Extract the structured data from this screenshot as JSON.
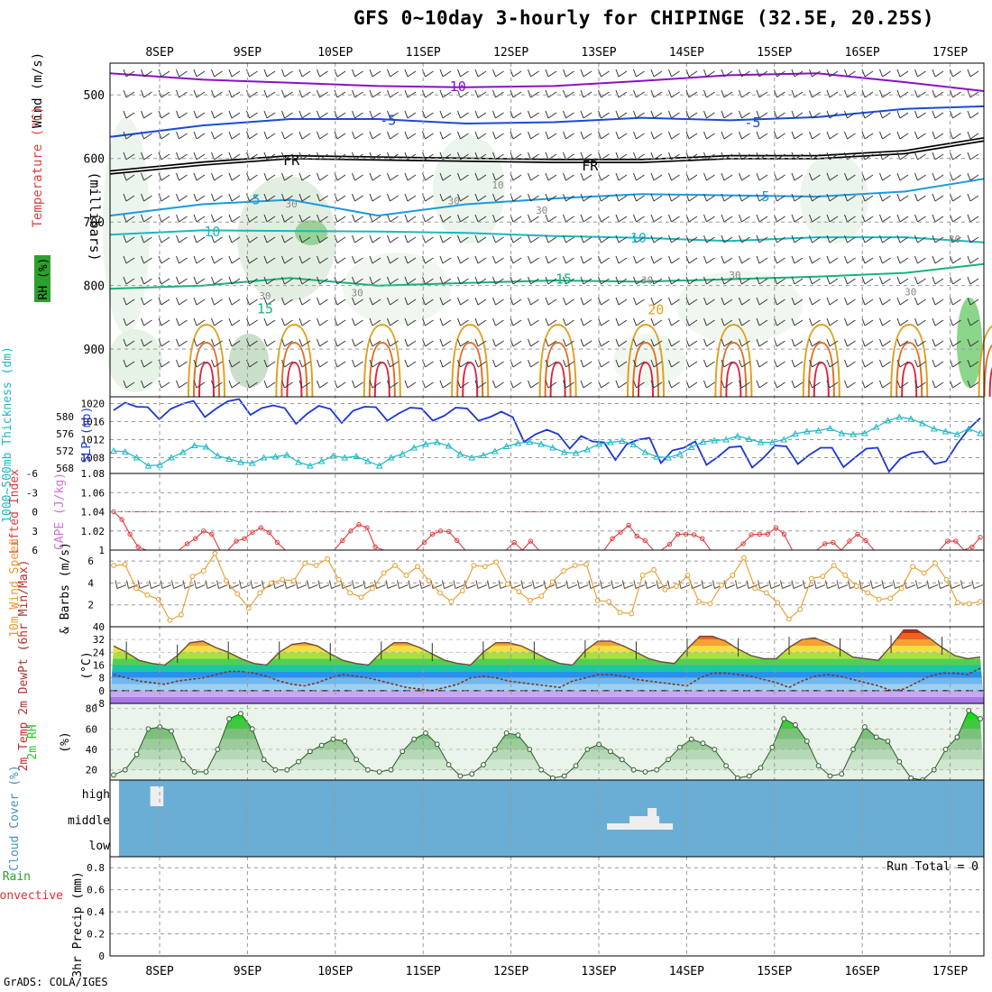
{
  "title": "GFS 0~10day 3-hourly for CHIPINGE (32.5E, 20.25S)",
  "credit": "GrADS: COLA/IGES",
  "date_labels": [
    "8SEP",
    "9SEP",
    "10SEP",
    "11SEP",
    "12SEP",
    "13SEP",
    "14SEP",
    "15SEP",
    "16SEP",
    "17SEP"
  ],
  "colors": {
    "slp": "#1a36d6",
    "thickness": "#18b8c8",
    "lifted": "#e03a3a",
    "cape": "#d070d8",
    "wind10m": "#e89a28",
    "barb": "#5a4a3a",
    "rh": "#22cc22",
    "cloud": "#6aaed6",
    "temp_minus10": "#8a10c8",
    "temp_minus5": "#1a4ad6",
    "temp_plus5": "#1a9ae0",
    "temp_10": "#18b8c0",
    "temp_15": "#18b080",
    "temp_20": "#e0a020",
    "temp_25": "#e07020",
    "temp_30": "#e02040",
    "freezing": "#000000"
  },
  "chart_data": [
    {
      "panel": "upper-air",
      "type": "contour",
      "ylabel": "(millibars)",
      "side_labels": [
        "Wind (m/s)",
        "Temperature (°C)",
        "RH (%)"
      ],
      "yticks": [
        500,
        600,
        700,
        800,
        900
      ],
      "ylim": [
        450,
        975
      ],
      "contour_labels": [
        {
          "text": "-10",
          "day": 3.35,
          "p": 487
        },
        {
          "text": "-5",
          "day": 2.6,
          "p": 540
        },
        {
          "text": "-5",
          "day": 6.75,
          "p": 544
        },
        {
          "text": "FR",
          "day": 1.5,
          "p": 603
        },
        {
          "text": "FR",
          "day": 4.9,
          "p": 612
        },
        {
          "text": "5",
          "day": 1.1,
          "p": 665
        },
        {
          "text": "5",
          "day": 6.9,
          "p": 660
        },
        {
          "text": "10",
          "day": 0.6,
          "p": 715
        },
        {
          "text": "10",
          "day": 5.45,
          "p": 725
        },
        {
          "text": "15",
          "day": 4.6,
          "p": 790
        },
        {
          "text": "15",
          "day": 1.2,
          "p": 837
        },
        {
          "text": "20",
          "day": 5.65,
          "p": 838
        },
        {
          "text": "30",
          "day": 1.5,
          "p": 670
        },
        {
          "text": "30",
          "day": 1.2,
          "p": 815
        },
        {
          "text": "30",
          "day": 2.25,
          "p": 810
        },
        {
          "text": "30",
          "day": 3.35,
          "p": 665
        },
        {
          "text": "10",
          "day": 3.85,
          "p": 640
        },
        {
          "text": "30",
          "day": 4.35,
          "p": 680
        },
        {
          "text": "30",
          "day": 5.55,
          "p": 790
        },
        {
          "text": "30",
          "day": 6.55,
          "p": 782
        },
        {
          "text": "30",
          "day": 8.55,
          "p": 808
        },
        {
          "text": "30",
          "day": 9.05,
          "p": 725
        }
      ],
      "isotherms": [
        {
          "label": "-10",
          "color_key": "temp_minus10",
          "days": [
            0,
            1,
            2,
            3,
            4,
            5,
            6,
            7,
            8,
            9,
            9.6
          ],
          "p": [
            466,
            476,
            481,
            486,
            488,
            486,
            478,
            469,
            466,
            480,
            494
          ]
        },
        {
          "label": "-5",
          "color_key": "temp_minus5",
          "days": [
            0,
            1,
            2,
            3,
            4,
            5,
            6,
            7,
            8,
            9,
            9.6
          ],
          "p": [
            566,
            548,
            538,
            538,
            545,
            543,
            536,
            540,
            535,
            522,
            518
          ]
        },
        {
          "label": "FR",
          "color_key": "freezing",
          "days": [
            0,
            1,
            2,
            3,
            4,
            5,
            6,
            7,
            8,
            9,
            9.6
          ],
          "p": [
            622,
            608,
            598,
            600,
            602,
            604,
            604,
            598,
            598,
            590,
            570
          ]
        },
        {
          "label": "5",
          "color_key": "temp_plus5",
          "days": [
            0,
            1,
            2,
            3,
            4,
            5,
            6,
            7,
            8,
            9,
            9.6
          ],
          "p": [
            690,
            672,
            665,
            690,
            672,
            663,
            656,
            658,
            660,
            652,
            632
          ]
        },
        {
          "label": "10",
          "color_key": "temp_10",
          "days": [
            0,
            1,
            2,
            3,
            4,
            5,
            6,
            7,
            8,
            9,
            9.6
          ],
          "p": [
            720,
            713,
            714,
            715,
            717,
            722,
            725,
            730,
            724,
            724,
            732
          ]
        },
        {
          "label": "15",
          "color_key": "temp_15",
          "days": [
            0,
            1,
            2,
            3,
            4,
            5,
            6,
            7,
            8,
            9,
            9.6
          ],
          "p": [
            805,
            800,
            788,
            800,
            796,
            792,
            794,
            790,
            786,
            780,
            766
          ]
        }
      ]
    },
    {
      "panel": "slp-thickness",
      "type": "line",
      "ylabel_left": "1000~500mb Thickness (dm)",
      "ylabel_right": "SLP (mb)",
      "yticks_left": [
        568,
        572,
        576,
        580
      ],
      "yticks_right": [
        1008,
        1012,
        1016,
        1020
      ],
      "ylim_slp": [
        1004.5,
        1021.5
      ],
      "series": [
        {
          "name": "SLP",
          "color_key": "slp",
          "axis": "slp",
          "values": [
            1018.5,
            1020.2,
            1019.3,
            1019.2,
            1016.5,
            1018.8,
            1019.9,
            1020.6,
            1017,
            1018.9,
            1020.5,
            1021,
            1017.5,
            1019,
            1019.6,
            1019,
            1015.5,
            1017.8,
            1019.5,
            1018.8,
            1015.7,
            1018.4,
            1019.3,
            1019.2,
            1016.2,
            1017.8,
            1019.1,
            1018.9,
            1016.2,
            1017.3,
            1019.1,
            1018.9,
            1016.2,
            1017,
            1018.2,
            1017,
            1011.5,
            1013.2,
            1014.2,
            1013.2,
            1010,
            1012.8,
            1011.6,
            1011.4,
            1007.5,
            1011,
            1012,
            1012.4,
            1006.8,
            1009.6,
            1010.2,
            1011.6,
            1006.4,
            1008.2,
            1010.3,
            1010.5,
            1005.8,
            1008,
            1010.7,
            1010.5,
            1006.6,
            1008.6,
            1010.2,
            1010.2,
            1005.9,
            1008,
            1010,
            1010.2,
            1004.9,
            1007.8,
            1009,
            1009.4,
            1006.6,
            1007.2,
            1011.1,
            1014.4,
            1016.8
          ]
        },
        {
          "name": "Thickness",
          "color_key": "thickness",
          "axis": "slp",
          "values": [
            1009.5,
            1009.3,
            1008,
            1006.2,
            1006.4,
            1008,
            1009.2,
            1010.7,
            1010.4,
            1008.4,
            1007.7,
            1007,
            1006.8,
            1008,
            1008.2,
            1008.6,
            1007,
            1006.2,
            1007.2,
            1008.4,
            1008,
            1008.3,
            1007.2,
            1006.2,
            1008,
            1008.8,
            1010.2,
            1011,
            1011.4,
            1010.6,
            1008.8,
            1008,
            1008.5,
            1009.4,
            1010.5,
            1011.2,
            1011.5,
            1011,
            1010.2,
            1009.2,
            1009,
            1009.8,
            1011,
            1011.4,
            1011.7,
            1010.9,
            1009.2,
            1008.2,
            1008,
            1008.8,
            1010.3,
            1011.5,
            1011.8,
            1012,
            1012.8,
            1012.1,
            1011.4,
            1011.4,
            1012,
            1013.3,
            1013.8,
            1014,
            1014.5,
            1013.4,
            1013.2,
            1013.4,
            1014.8,
            1016.2,
            1017,
            1016.6,
            1015.6,
            1014.4,
            1013.8,
            1013.2,
            1014.4,
            1013.4
          ]
        }
      ]
    },
    {
      "panel": "lifted-cape",
      "type": "line",
      "ylabel_left": "Lifted Index",
      "ylabel_right": "CAPE (J/kg)",
      "yticks_left": [
        -6,
        -3,
        0,
        3,
        6
      ],
      "yticks_right": [
        1,
        1.02,
        1.04,
        1.06,
        1.08
      ],
      "ylim": [
        -6,
        6
      ],
      "reference_line": 0,
      "series": [
        {
          "name": "Lifted Index",
          "color_key": "lifted",
          "values": [
            0,
            1.2,
            3.5,
            5.5,
            6,
            6,
            6,
            6,
            6,
            5,
            4.2,
            3,
            3.5,
            6,
            6,
            4.6,
            4.2,
            3.2,
            2.5,
            3.2,
            4.8,
            6,
            6,
            6,
            6,
            6,
            6,
            6,
            4.5,
            3,
            2,
            2.5,
            5.5,
            6,
            6,
            6,
            6,
            6,
            4.8,
            3.5,
            3,
            3.1,
            4.5,
            6,
            6,
            6,
            6,
            6,
            6,
            4.8,
            6,
            4.6,
            6,
            6,
            6,
            6,
            6,
            6,
            6,
            6,
            6,
            4.2,
            3.2,
            2.1,
            3.8,
            4.5,
            6,
            6,
            5.1,
            3.5,
            3.5,
            3.6,
            4.2,
            6,
            6,
            6,
            6,
            5,
            3.6,
            3.5,
            3.5,
            2.5,
            3.5,
            6,
            6,
            6,
            6,
            5,
            4.8,
            6,
            4.6,
            3.5,
            4.5,
            6,
            6,
            6,
            6,
            6,
            6,
            6,
            6,
            6,
            4.6,
            4.6,
            6,
            5.5,
            4
          ]
        }
      ]
    },
    {
      "panel": "wind10m",
      "type": "line",
      "ylabel_left": "10m Wind Speed",
      "ylabel_right": "& Barbs (m/s)",
      "yticks": [
        2,
        4,
        6
      ],
      "ylim": [
        0,
        7
      ],
      "series": [
        {
          "name": "10m Wind Speed",
          "color_key": "wind10m",
          "values": [
            5.6,
            5.7,
            3.5,
            2.9,
            2.5,
            0.6,
            1.1,
            4.6,
            5.1,
            6.7,
            4.2,
            3,
            1.7,
            3.1,
            4,
            4.3,
            4.2,
            5.8,
            5.6,
            6.2,
            4.3,
            3.1,
            2.7,
            3.5,
            4.9,
            5.6,
            4.7,
            5.5,
            4.2,
            3.1,
            2.3,
            3.3,
            5.6,
            5.5,
            5.9,
            3.9,
            3.2,
            2.4,
            2.8,
            4.1,
            5.1,
            5.6,
            5.7,
            2.4,
            2.3,
            1.3,
            1.2,
            4.7,
            5.2,
            3.4,
            3.7,
            4.7,
            2.3,
            2.1,
            3.8,
            4.7,
            6.3,
            3.5,
            3.1,
            2.2,
            0.7,
            1.6,
            4.4,
            4.6,
            5.6,
            4.7,
            3.7,
            3.1,
            2.5,
            2.6,
            3.5,
            5.5,
            4.9,
            5.8,
            4.3,
            2.2,
            2.1,
            2.3
          ]
        }
      ]
    },
    {
      "panel": "temperature",
      "type": "area",
      "ylabel_left": "2m Temp 2m DewPt (6hr Min/Max)",
      "ylabel_right": "(°C)",
      "yticks": [
        -8,
        0,
        8,
        16,
        24,
        32,
        40
      ],
      "ylim": [
        -8,
        40
      ],
      "series": [
        {
          "name": "2m Temp",
          "color_key": "temp_25",
          "values": [
            28,
            24,
            19,
            17,
            16,
            22,
            30,
            31,
            27,
            24,
            20,
            17,
            16,
            24,
            29,
            30,
            28,
            23,
            19,
            17,
            16,
            24,
            30,
            30,
            27,
            23,
            19,
            17,
            16,
            24,
            30,
            30,
            28,
            24,
            20,
            17,
            16,
            25,
            31,
            31,
            28,
            24,
            20,
            18,
            17,
            26,
            34,
            34,
            31,
            26,
            22,
            20,
            20,
            27,
            32,
            33,
            30,
            26,
            21,
            20,
            19,
            28,
            38,
            38,
            33,
            27,
            22,
            20,
            21
          ]
        },
        {
          "name": "2m DewPt",
          "color_key": "barb",
          "values": [
            10,
            8,
            6,
            5,
            4,
            6,
            7,
            8,
            10,
            12,
            12,
            11,
            9,
            6,
            4,
            3,
            5,
            8,
            10,
            9,
            8,
            6,
            4,
            2,
            1,
            0,
            2,
            4,
            8,
            9,
            8,
            6,
            5,
            4,
            3,
            2,
            6,
            8,
            10,
            10,
            9,
            7,
            6,
            5,
            4,
            3,
            8,
            11,
            11,
            10,
            9,
            7,
            5,
            2,
            6,
            9,
            10,
            9,
            7,
            5,
            3,
            0,
            1,
            5,
            9,
            11,
            11,
            10,
            14
          ]
        }
      ]
    },
    {
      "panel": "rh2m",
      "type": "area",
      "ylabel_left": "2m RH",
      "ylabel_right": "(%)",
      "yticks": [
        20,
        40,
        60,
        80
      ],
      "ylim": [
        10,
        85
      ],
      "series": [
        {
          "name": "2m RH",
          "color_key": "rh",
          "values": [
            15,
            20,
            35,
            60,
            62,
            58,
            30,
            18,
            18,
            40,
            70,
            75,
            60,
            30,
            20,
            20,
            28,
            38,
            44,
            50,
            48,
            30,
            20,
            18,
            20,
            38,
            50,
            56,
            45,
            25,
            14,
            16,
            25,
            40,
            56,
            54,
            40,
            20,
            12,
            14,
            24,
            40,
            45,
            38,
            30,
            20,
            18,
            20,
            30,
            42,
            50,
            46,
            40,
            24,
            12,
            14,
            22,
            42,
            70,
            64,
            48,
            24,
            14,
            16,
            40,
            62,
            52,
            48,
            28,
            12,
            10,
            20,
            40,
            52,
            78,
            70
          ]
        }
      ]
    },
    {
      "panel": "cloud",
      "type": "bar",
      "ylabel": "Cloud Cover (%)",
      "levels": [
        "high",
        "middle",
        "low"
      ],
      "blocks": [
        {
          "level": "high",
          "start_day": 0.15,
          "end_day": 0.3
        },
        {
          "level": "middle",
          "start_day": 5.35,
          "end_day": 6.1
        },
        {
          "level": "low",
          "start_day": 9.75,
          "end_day": 9.9
        }
      ]
    },
    {
      "panel": "precip",
      "type": "bar",
      "ylabel": "3hr Precip (mm)",
      "side_labels": [
        "Total / Rain",
        "Convective"
      ],
      "yticks": [
        0,
        0.2,
        0.4,
        0.6,
        0.8
      ],
      "ylim": [
        0,
        0.9
      ],
      "run_total_label": "Run Total = 0",
      "values": []
    }
  ]
}
